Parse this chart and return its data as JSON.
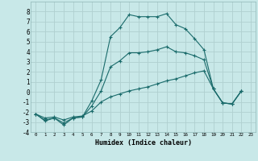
{
  "xlabel": "Humidex (Indice chaleur)",
  "bg_color": "#c8e8e8",
  "grid_color": "#b0d0d0",
  "line_color": "#1a6b6b",
  "xlim": [
    -0.5,
    23.5
  ],
  "ylim": [
    -4,
    9
  ],
  "xtick_labels": [
    "0",
    "1",
    "2",
    "3",
    "4",
    "5",
    "6",
    "7",
    "8",
    "9",
    "10",
    "11",
    "12",
    "13",
    "14",
    "15",
    "16",
    "17",
    "18",
    "19",
    "20",
    "21",
    "22",
    "23"
  ],
  "xtick_vals": [
    0,
    1,
    2,
    3,
    4,
    5,
    6,
    7,
    8,
    9,
    10,
    11,
    12,
    13,
    14,
    15,
    16,
    17,
    18,
    19,
    20,
    21,
    22,
    23
  ],
  "ytick_vals": [
    -4,
    -3,
    -2,
    -1,
    0,
    1,
    2,
    3,
    4,
    5,
    6,
    7,
    8
  ],
  "series": [
    {
      "x": [
        0,
        1,
        2,
        3,
        4,
        5,
        6,
        7,
        8,
        9,
        10,
        11,
        12,
        13,
        14,
        15,
        16,
        17,
        18,
        19,
        20,
        21,
        22
      ],
      "y": [
        -2.2,
        -2.9,
        -2.6,
        -3.3,
        -2.6,
        -2.5,
        -0.9,
        1.2,
        5.5,
        6.4,
        7.7,
        7.5,
        7.5,
        7.5,
        7.8,
        6.7,
        6.3,
        5.3,
        4.2,
        0.3,
        -1.1,
        -1.2,
        0.1
      ]
    },
    {
      "x": [
        0,
        1,
        2,
        3,
        4,
        5,
        6,
        7,
        8,
        9,
        10,
        11,
        12,
        13,
        14,
        15,
        16,
        17,
        18,
        19,
        20,
        21,
        22
      ],
      "y": [
        -2.2,
        -2.6,
        -2.5,
        -2.8,
        -2.5,
        -2.4,
        -1.9,
        -1.0,
        -0.5,
        -0.2,
        0.1,
        0.3,
        0.5,
        0.8,
        1.1,
        1.3,
        1.6,
        1.9,
        2.1,
        0.3,
        -1.1,
        -1.2,
        0.1
      ]
    },
    {
      "x": [
        0,
        1,
        2,
        3,
        4,
        5,
        6,
        7,
        8,
        9,
        10,
        11,
        12,
        13,
        14,
        15,
        16,
        17,
        18,
        19,
        20,
        21,
        22
      ],
      "y": [
        -2.2,
        -2.8,
        -2.6,
        -3.1,
        -2.6,
        -2.5,
        -1.4,
        0.1,
        2.5,
        3.1,
        3.9,
        3.9,
        4.0,
        4.2,
        4.5,
        4.0,
        3.9,
        3.6,
        3.2,
        0.3,
        -1.1,
        -1.2,
        0.1
      ]
    }
  ]
}
